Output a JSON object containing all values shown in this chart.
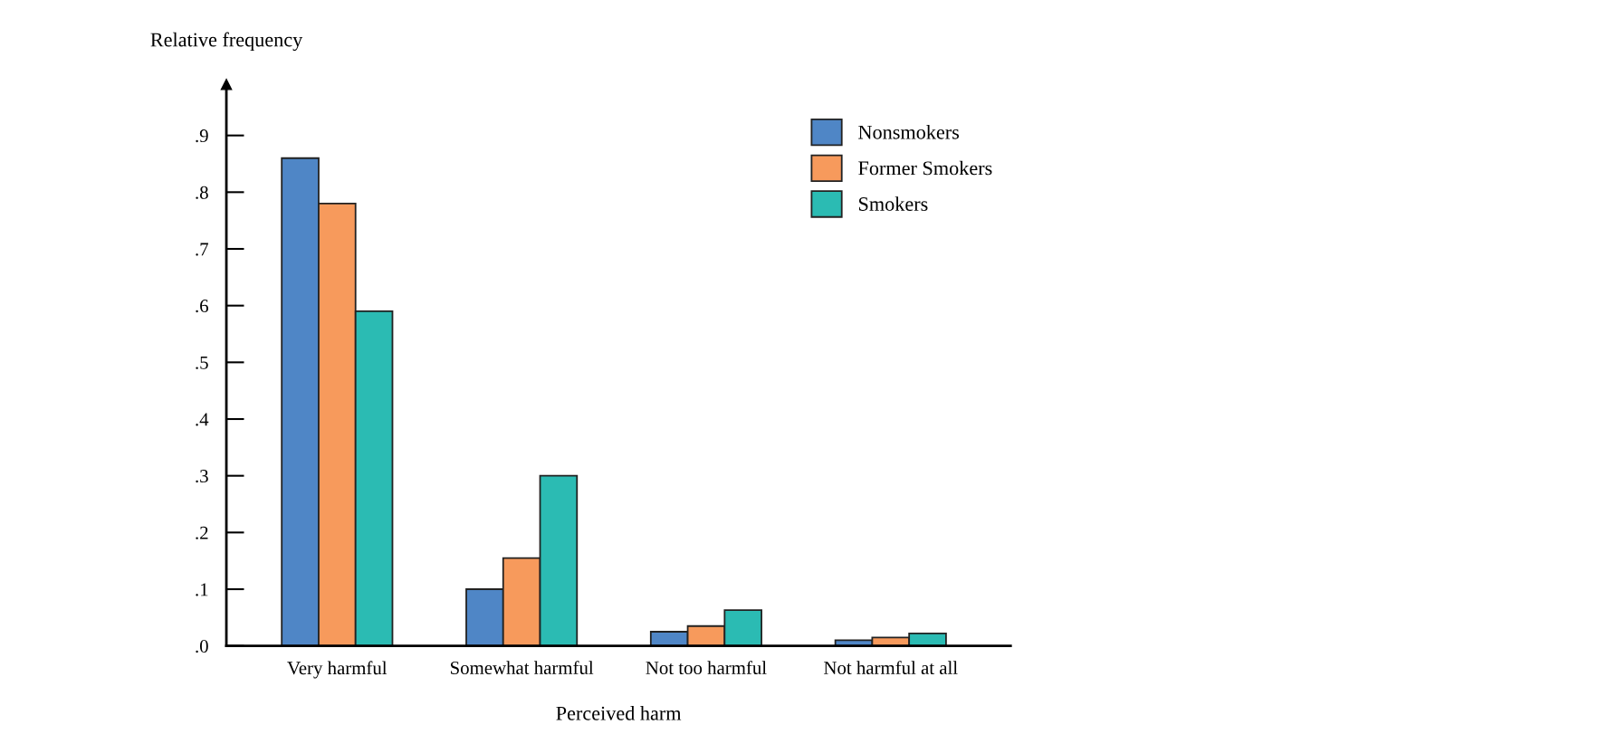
{
  "chart_data": {
    "type": "bar",
    "ylabel": "Relative frequency",
    "xlabel": "Perceived harm",
    "categories": [
      "Very harmful",
      "Somewhat harmful",
      "Not too harmful",
      "Not harmful at all"
    ],
    "series": [
      {
        "name": "Nonsmokers",
        "color": "#4f86c6",
        "values": [
          0.86,
          0.1,
          0.025,
          0.01
        ]
      },
      {
        "name": "Former Smokers",
        "color": "#f79a5c",
        "values": [
          0.78,
          0.155,
          0.035,
          0.015
        ]
      },
      {
        "name": "Smokers",
        "color": "#2bbbb3",
        "values": [
          0.59,
          0.3,
          0.063,
          0.022
        ]
      }
    ],
    "ylim": [
      0,
      0.99
    ],
    "yticks": [
      {
        "value": 0,
        "label": ".0"
      },
      {
        "value": 0.1,
        "label": ".1"
      },
      {
        "value": 0.2,
        "label": ".2"
      },
      {
        "value": 0.3,
        "label": ".3"
      },
      {
        "value": 0.4,
        "label": ".4"
      },
      {
        "value": 0.5,
        "label": ".5"
      },
      {
        "value": 0.6,
        "label": ".6"
      },
      {
        "value": 0.7,
        "label": ".7"
      },
      {
        "value": 0.8,
        "label": ".8"
      },
      {
        "value": 0.9,
        "label": ".9"
      }
    ],
    "legend": "top right",
    "grid": false
  }
}
